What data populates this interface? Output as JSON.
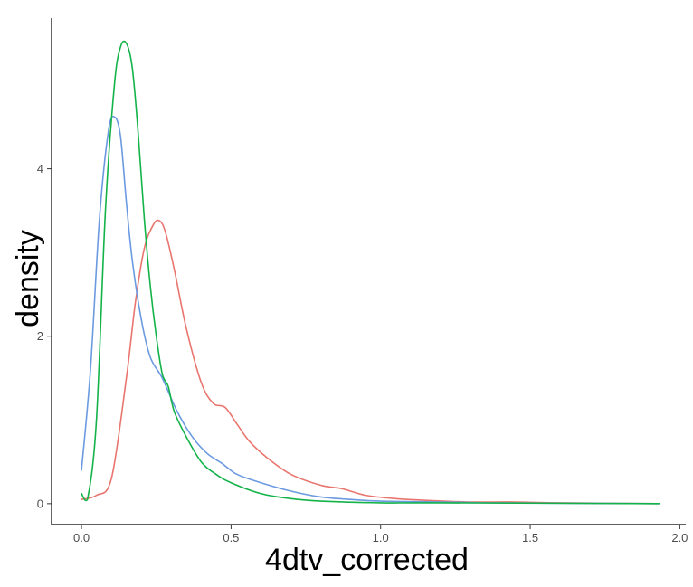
{
  "chart_data": {
    "type": "line",
    "title": "",
    "xlabel": "4dtv_corrected",
    "ylabel": "density",
    "xlim": [
      -0.1,
      2.02
    ],
    "ylim": [
      -0.25,
      5.8
    ],
    "x_ticks": [
      0.0,
      0.5,
      1.0,
      1.5,
      2.0
    ],
    "x_tick_labels": [
      "0.0",
      "0.5",
      "1.0",
      "1.5",
      "2.0"
    ],
    "y_ticks": [
      0,
      2,
      4
    ],
    "y_tick_labels": [
      "0",
      "2",
      "4"
    ],
    "grid": false,
    "legend": "none",
    "series": [
      {
        "color": "#E8766E",
        "x": [
          0.0,
          0.05,
          0.1,
          0.15,
          0.18,
          0.21,
          0.24,
          0.26,
          0.28,
          0.31,
          0.35,
          0.4,
          0.44,
          0.48,
          0.52,
          0.56,
          0.62,
          0.7,
          0.8,
          0.87,
          0.95,
          1.05,
          1.15,
          1.3,
          1.45,
          1.6,
          1.93
        ],
        "y": [
          0.05,
          0.1,
          0.3,
          1.5,
          2.4,
          3.05,
          3.33,
          3.38,
          3.25,
          2.8,
          2.1,
          1.45,
          1.2,
          1.15,
          0.95,
          0.75,
          0.55,
          0.35,
          0.22,
          0.18,
          0.1,
          0.06,
          0.04,
          0.02,
          0.02,
          0.01,
          0.0
        ]
      },
      {
        "color": "#6B9AE0",
        "x": [
          0.0,
          0.03,
          0.06,
          0.09,
          0.11,
          0.13,
          0.15,
          0.17,
          0.2,
          0.23,
          0.27,
          0.32,
          0.37,
          0.42,
          0.47,
          0.52,
          0.6,
          0.7,
          0.8,
          0.9,
          1.0,
          1.2,
          1.4,
          1.93
        ],
        "y": [
          0.4,
          1.6,
          3.4,
          4.45,
          4.62,
          4.4,
          3.6,
          2.9,
          2.2,
          1.75,
          1.5,
          1.1,
          0.8,
          0.6,
          0.48,
          0.35,
          0.25,
          0.15,
          0.08,
          0.05,
          0.03,
          0.02,
          0.01,
          0.0
        ]
      },
      {
        "color": "#14B34A",
        "x": [
          0.0,
          0.02,
          0.05,
          0.08,
          0.11,
          0.13,
          0.15,
          0.17,
          0.19,
          0.21,
          0.23,
          0.25,
          0.27,
          0.29,
          0.31,
          0.35,
          0.4,
          0.45,
          0.5,
          0.6,
          0.7,
          0.8,
          1.0,
          1.2,
          1.93
        ],
        "y": [
          0.12,
          0.05,
          1.0,
          3.5,
          5.0,
          5.45,
          5.5,
          5.2,
          4.4,
          3.4,
          2.6,
          2.0,
          1.55,
          1.4,
          1.1,
          0.8,
          0.5,
          0.35,
          0.25,
          0.12,
          0.06,
          0.03,
          0.01,
          0.01,
          0.0
        ]
      }
    ]
  }
}
